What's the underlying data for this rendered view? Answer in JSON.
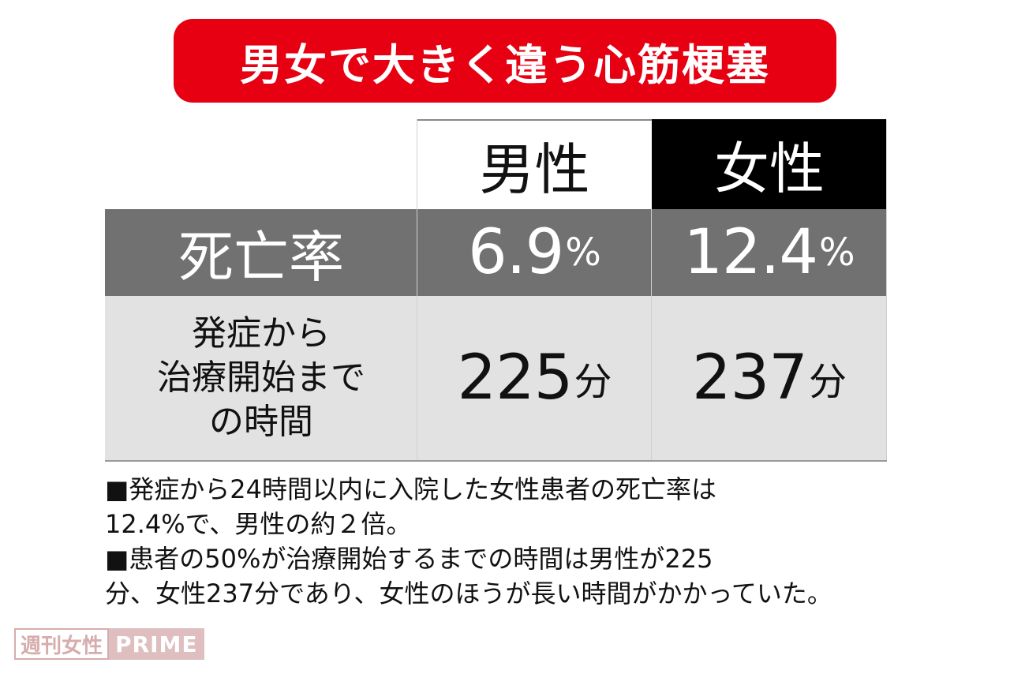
{
  "title": "男女で大きく違う心筋梗塞",
  "table": {
    "headers": {
      "male": "男性",
      "female": "女性"
    },
    "rows": [
      {
        "label": "死亡率",
        "male_value": "6.9",
        "male_unit": "%",
        "female_value": "12.4",
        "female_unit": "%"
      },
      {
        "label_lines": [
          "発症から",
          "治療開始まで",
          "の時間"
        ],
        "male_value": "225",
        "male_unit": "分",
        "female_value": "237",
        "female_unit": "分"
      }
    ]
  },
  "notes": [
    "■発症から24時間以内に入院した女性患者の死亡率は\n12.4%で、男性の約２倍。",
    "■患者の50%が治療開始するまでの時間は男性が225\n分、女性237分であり、女性のほうが長い時間がかかっていた。"
  ],
  "logo": {
    "left": "週刊女性",
    "right": "PRIME"
  },
  "colors": {
    "banner": "#e60012",
    "row_dark": "#717171",
    "row_light": "#e2e2e2",
    "header_female": "#000000"
  }
}
